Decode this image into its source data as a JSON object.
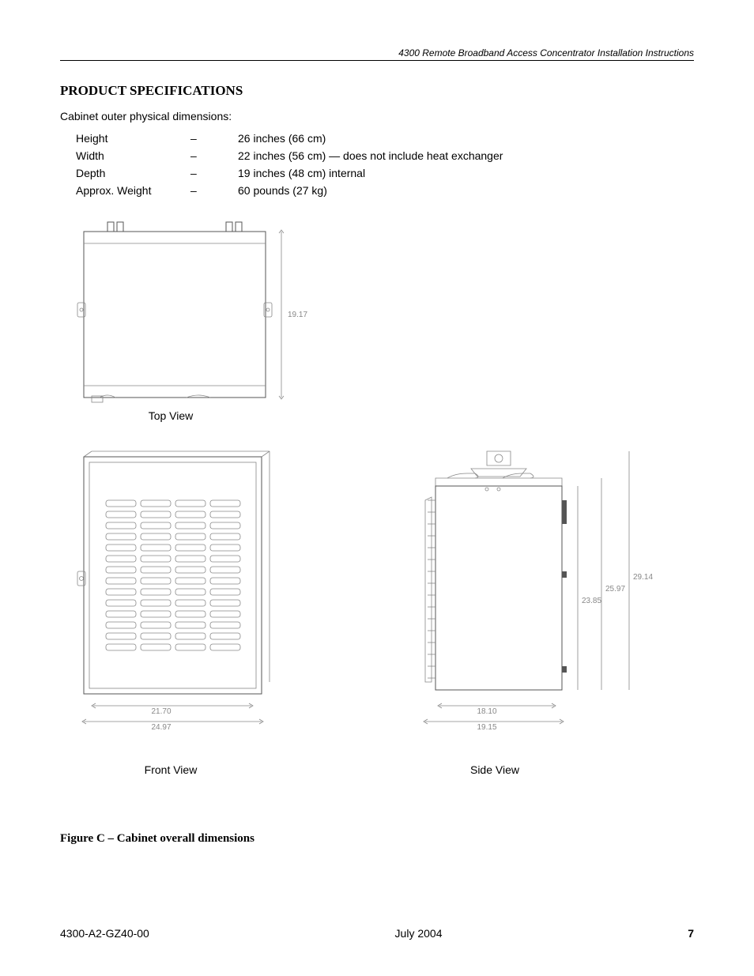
{
  "header": {
    "running_title": "4300 Remote Broadband Access Concentrator  Installation Instructions"
  },
  "section_title": "PRODUCT SPECIFICATIONS",
  "intro": "Cabinet outer physical dimensions:",
  "specs": [
    {
      "label": "Height",
      "dash": "–",
      "value": "26 inches (66 cm)"
    },
    {
      "label": "Width",
      "dash": "–",
      "value": "22 inches (56 cm) — does not include heat exchanger"
    },
    {
      "label": "Depth",
      "dash": "–",
      "value": "19 inches (48 cm) internal"
    },
    {
      "label": "Approx. Weight",
      "dash": "–",
      "value": "60 pounds (27 kg)"
    }
  ],
  "views": {
    "top": {
      "label": "Top View",
      "dim_right": "19.17"
    },
    "front": {
      "label": "Front View",
      "dim_inner": "21.70",
      "dim_outer": "24.97"
    },
    "side": {
      "label": "Side View",
      "dim_bottom_inner": "18.10",
      "dim_bottom_outer": "19.15",
      "dim_h1": "23.85",
      "dim_h2": "25.97",
      "dim_h3": "29.14"
    }
  },
  "figure_caption": "Figure C – Cabinet overall dimensions",
  "footer": {
    "doc_id": "4300-A2-GZ40-00",
    "date": "July 2004",
    "page": "7"
  },
  "colors": {
    "text": "#000000",
    "dim": "#888888",
    "line": "#555555",
    "bg": "#ffffff"
  }
}
